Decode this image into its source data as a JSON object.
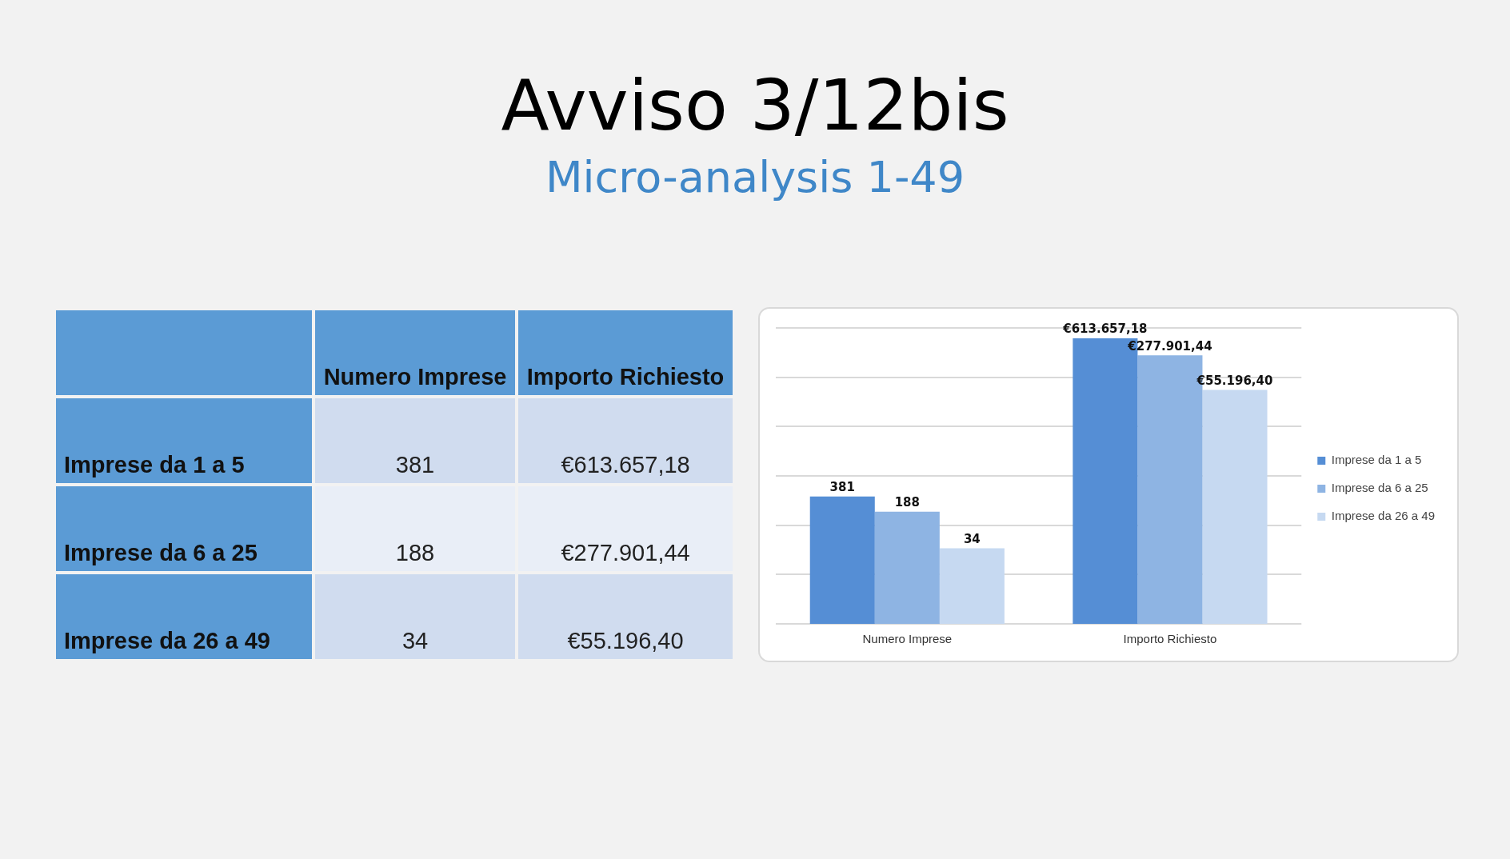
{
  "chart_data": {
    "type": "bar",
    "title": "Avviso 3/12bis",
    "subtitle": "Micro-analysis 1-49",
    "categories": [
      "Numero Imprese",
      "Importo Richiesto"
    ],
    "series": [
      {
        "name": "Imprese da 1 a 5",
        "color": "#558ed5",
        "values": [
          381,
          613657.18
        ],
        "value_labels": [
          "381",
          "€613.657,18"
        ]
      },
      {
        "name": "Imprese da 6 a 25",
        "color": "#8eb4e3",
        "values": [
          188,
          277901.44
        ],
        "value_labels": [
          "188",
          "€277.901,44"
        ]
      },
      {
        "name": "Imprese da 26 a 49",
        "color": "#c6d9f1",
        "values": [
          34,
          55196.4
        ],
        "value_labels": [
          "34",
          "€55.196,40"
        ]
      }
    ],
    "log": true,
    "ylim": [
      1,
      1000000
    ],
    "yticks": [
      {
        "value": 1,
        "label": null
      },
      {
        "value": 10,
        "label": null
      },
      {
        "value": 100,
        "label": null
      },
      {
        "value": 1000,
        "label": null
      },
      {
        "value": 10000,
        "label": null
      },
      {
        "value": 100000,
        "label": null
      },
      {
        "value": 1000000,
        "label": null
      }
    ],
    "tick_labels": "x",
    "grid": "y",
    "legend": "right"
  }
}
